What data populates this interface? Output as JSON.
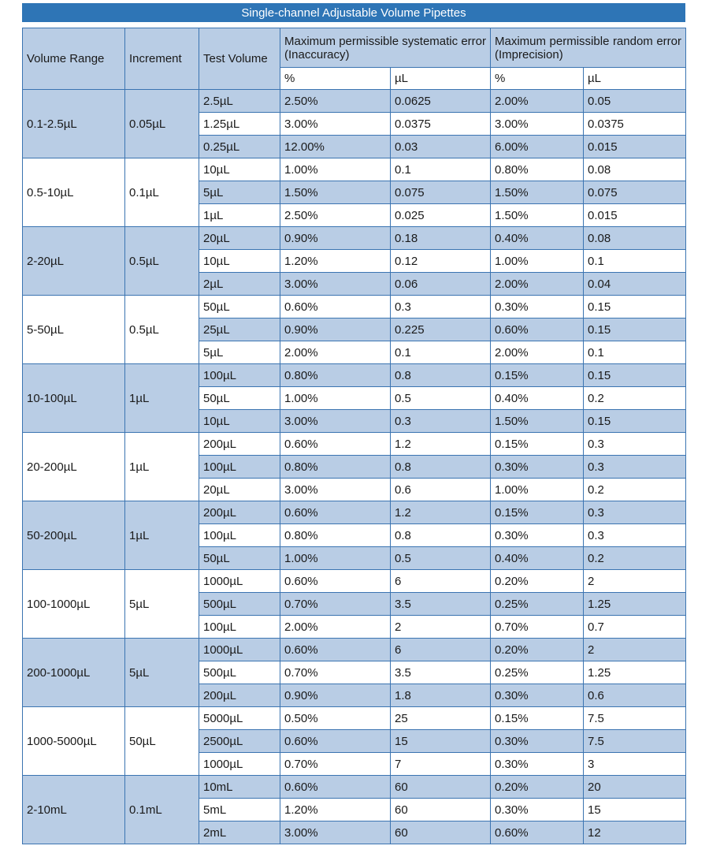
{
  "title": "Single-channel Adjustable Volume Pipettes",
  "colors": {
    "title_bar": "#2e75b6",
    "title_text": "#ffffff",
    "row_alt_bg": "#b9cde5",
    "row_bg": "#ffffff",
    "border": "#3b74b1",
    "text": "#1a1a1a"
  },
  "header": {
    "volume_range": "Volume Range",
    "increment": "Increment",
    "test_volume": "Test Volume",
    "systematic": "Maximum permissible systematic error (Inaccuracy)",
    "random": "Maximum permissible random error (Imprecision)",
    "pct": "%",
    "ul": "µL"
  },
  "chart_data": {
    "type": "table",
    "title": "Single-channel Adjustable Volume Pipettes",
    "columns": [
      "Volume Range",
      "Increment",
      "Test Volume",
      "Systematic error %",
      "Systematic error µL",
      "Random error %",
      "Random error µL"
    ],
    "groups": [
      {
        "volume_range": "0.1-2.5µL",
        "increment": "0.05µL",
        "rows": [
          {
            "test_volume": "2.5µL",
            "sys_pct": "2.50%",
            "sys_ul": "0.0625",
            "rand_pct": "2.00%",
            "rand_ul": "0.05"
          },
          {
            "test_volume": "1.25µL",
            "sys_pct": "3.00%",
            "sys_ul": "0.0375",
            "rand_pct": "3.00%",
            "rand_ul": "0.0375"
          },
          {
            "test_volume": "0.25µL",
            "sys_pct": "12.00%",
            "sys_ul": "0.03",
            "rand_pct": "6.00%",
            "rand_ul": "0.015"
          }
        ]
      },
      {
        "volume_range": "0.5-10µL",
        "increment": "0.1µL",
        "rows": [
          {
            "test_volume": "10µL",
            "sys_pct": "1.00%",
            "sys_ul": "0.1",
            "rand_pct": "0.80%",
            "rand_ul": "0.08"
          },
          {
            "test_volume": "5µL",
            "sys_pct": "1.50%",
            "sys_ul": "0.075",
            "rand_pct": "1.50%",
            "rand_ul": "0.075"
          },
          {
            "test_volume": "1µL",
            "sys_pct": "2.50%",
            "sys_ul": "0.025",
            "rand_pct": "1.50%",
            "rand_ul": "0.015"
          }
        ]
      },
      {
        "volume_range": "2-20µL",
        "increment": "0.5µL",
        "rows": [
          {
            "test_volume": "20µL",
            "sys_pct": "0.90%",
            "sys_ul": "0.18",
            "rand_pct": "0.40%",
            "rand_ul": "0.08"
          },
          {
            "test_volume": "10µL",
            "sys_pct": "1.20%",
            "sys_ul": "0.12",
            "rand_pct": "1.00%",
            "rand_ul": "0.1"
          },
          {
            "test_volume": "2µL",
            "sys_pct": "3.00%",
            "sys_ul": "0.06",
            "rand_pct": "2.00%",
            "rand_ul": "0.04"
          }
        ]
      },
      {
        "volume_range": "5-50µL",
        "increment": "0.5µL",
        "rows": [
          {
            "test_volume": "50µL",
            "sys_pct": "0.60%",
            "sys_ul": "0.3",
            "rand_pct": "0.30%",
            "rand_ul": "0.15"
          },
          {
            "test_volume": "25µL",
            "sys_pct": "0.90%",
            "sys_ul": "0.225",
            "rand_pct": "0.60%",
            "rand_ul": "0.15"
          },
          {
            "test_volume": "5µL",
            "sys_pct": "2.00%",
            "sys_ul": "0.1",
            "rand_pct": "2.00%",
            "rand_ul": "0.1"
          }
        ]
      },
      {
        "volume_range": "10-100µL",
        "increment": "1µL",
        "rows": [
          {
            "test_volume": "100µL",
            "sys_pct": "0.80%",
            "sys_ul": "0.8",
            "rand_pct": "0.15%",
            "rand_ul": "0.15"
          },
          {
            "test_volume": "50µL",
            "sys_pct": "1.00%",
            "sys_ul": "0.5",
            "rand_pct": "0.40%",
            "rand_ul": "0.2"
          },
          {
            "test_volume": "10µL",
            "sys_pct": "3.00%",
            "sys_ul": "0.3",
            "rand_pct": "1.50%",
            "rand_ul": "0.15"
          }
        ]
      },
      {
        "volume_range": "20-200µL",
        "increment": "1µL",
        "rows": [
          {
            "test_volume": "200µL",
            "sys_pct": "0.60%",
            "sys_ul": "1.2",
            "rand_pct": "0.15%",
            "rand_ul": "0.3"
          },
          {
            "test_volume": "100µL",
            "sys_pct": "0.80%",
            "sys_ul": "0.8",
            "rand_pct": "0.30%",
            "rand_ul": "0.3"
          },
          {
            "test_volume": "20µL",
            "sys_pct": "3.00%",
            "sys_ul": "0.6",
            "rand_pct": "1.00%",
            "rand_ul": "0.2"
          }
        ]
      },
      {
        "volume_range": "50-200µL",
        "increment": "1µL",
        "rows": [
          {
            "test_volume": "200µL",
            "sys_pct": "0.60%",
            "sys_ul": "1.2",
            "rand_pct": "0.15%",
            "rand_ul": "0.3"
          },
          {
            "test_volume": "100µL",
            "sys_pct": "0.80%",
            "sys_ul": "0.8",
            "rand_pct": "0.30%",
            "rand_ul": "0.3"
          },
          {
            "test_volume": "50µL",
            "sys_pct": "1.00%",
            "sys_ul": "0.5",
            "rand_pct": "0.40%",
            "rand_ul": "0.2"
          }
        ]
      },
      {
        "volume_range": "100-1000µL",
        "increment": "5µL",
        "rows": [
          {
            "test_volume": "1000µL",
            "sys_pct": "0.60%",
            "sys_ul": "6",
            "rand_pct": "0.20%",
            "rand_ul": "2"
          },
          {
            "test_volume": "500µL",
            "sys_pct": "0.70%",
            "sys_ul": "3.5",
            "rand_pct": "0.25%",
            "rand_ul": "1.25"
          },
          {
            "test_volume": "100µL",
            "sys_pct": "2.00%",
            "sys_ul": "2",
            "rand_pct": "0.70%",
            "rand_ul": "0.7"
          }
        ]
      },
      {
        "volume_range": "200-1000µL",
        "increment": "5µL",
        "rows": [
          {
            "test_volume": "1000µL",
            "sys_pct": "0.60%",
            "sys_ul": "6",
            "rand_pct": "0.20%",
            "rand_ul": "2"
          },
          {
            "test_volume": "500µL",
            "sys_pct": "0.70%",
            "sys_ul": "3.5",
            "rand_pct": "0.25%",
            "rand_ul": "1.25"
          },
          {
            "test_volume": "200µL",
            "sys_pct": "0.90%",
            "sys_ul": "1.8",
            "rand_pct": "0.30%",
            "rand_ul": "0.6"
          }
        ]
      },
      {
        "volume_range": "1000-5000µL",
        "increment": "50µL",
        "rows": [
          {
            "test_volume": "5000µL",
            "sys_pct": "0.50%",
            "sys_ul": "25",
            "rand_pct": "0.15%",
            "rand_ul": "7.5"
          },
          {
            "test_volume": "2500µL",
            "sys_pct": "0.60%",
            "sys_ul": "15",
            "rand_pct": "0.30%",
            "rand_ul": "7.5"
          },
          {
            "test_volume": "1000µL",
            "sys_pct": "0.70%",
            "sys_ul": "7",
            "rand_pct": "0.30%",
            "rand_ul": "3"
          }
        ]
      },
      {
        "volume_range": "2-10mL",
        "increment": "0.1mL",
        "rows": [
          {
            "test_volume": "10mL",
            "sys_pct": "0.60%",
            "sys_ul": "60",
            "rand_pct": "0.20%",
            "rand_ul": "20"
          },
          {
            "test_volume": "5mL",
            "sys_pct": "1.20%",
            "sys_ul": "60",
            "rand_pct": "0.30%",
            "rand_ul": "15"
          },
          {
            "test_volume": "2mL",
            "sys_pct": "3.00%",
            "sys_ul": "60",
            "rand_pct": "0.60%",
            "rand_ul": "12"
          }
        ]
      }
    ]
  }
}
